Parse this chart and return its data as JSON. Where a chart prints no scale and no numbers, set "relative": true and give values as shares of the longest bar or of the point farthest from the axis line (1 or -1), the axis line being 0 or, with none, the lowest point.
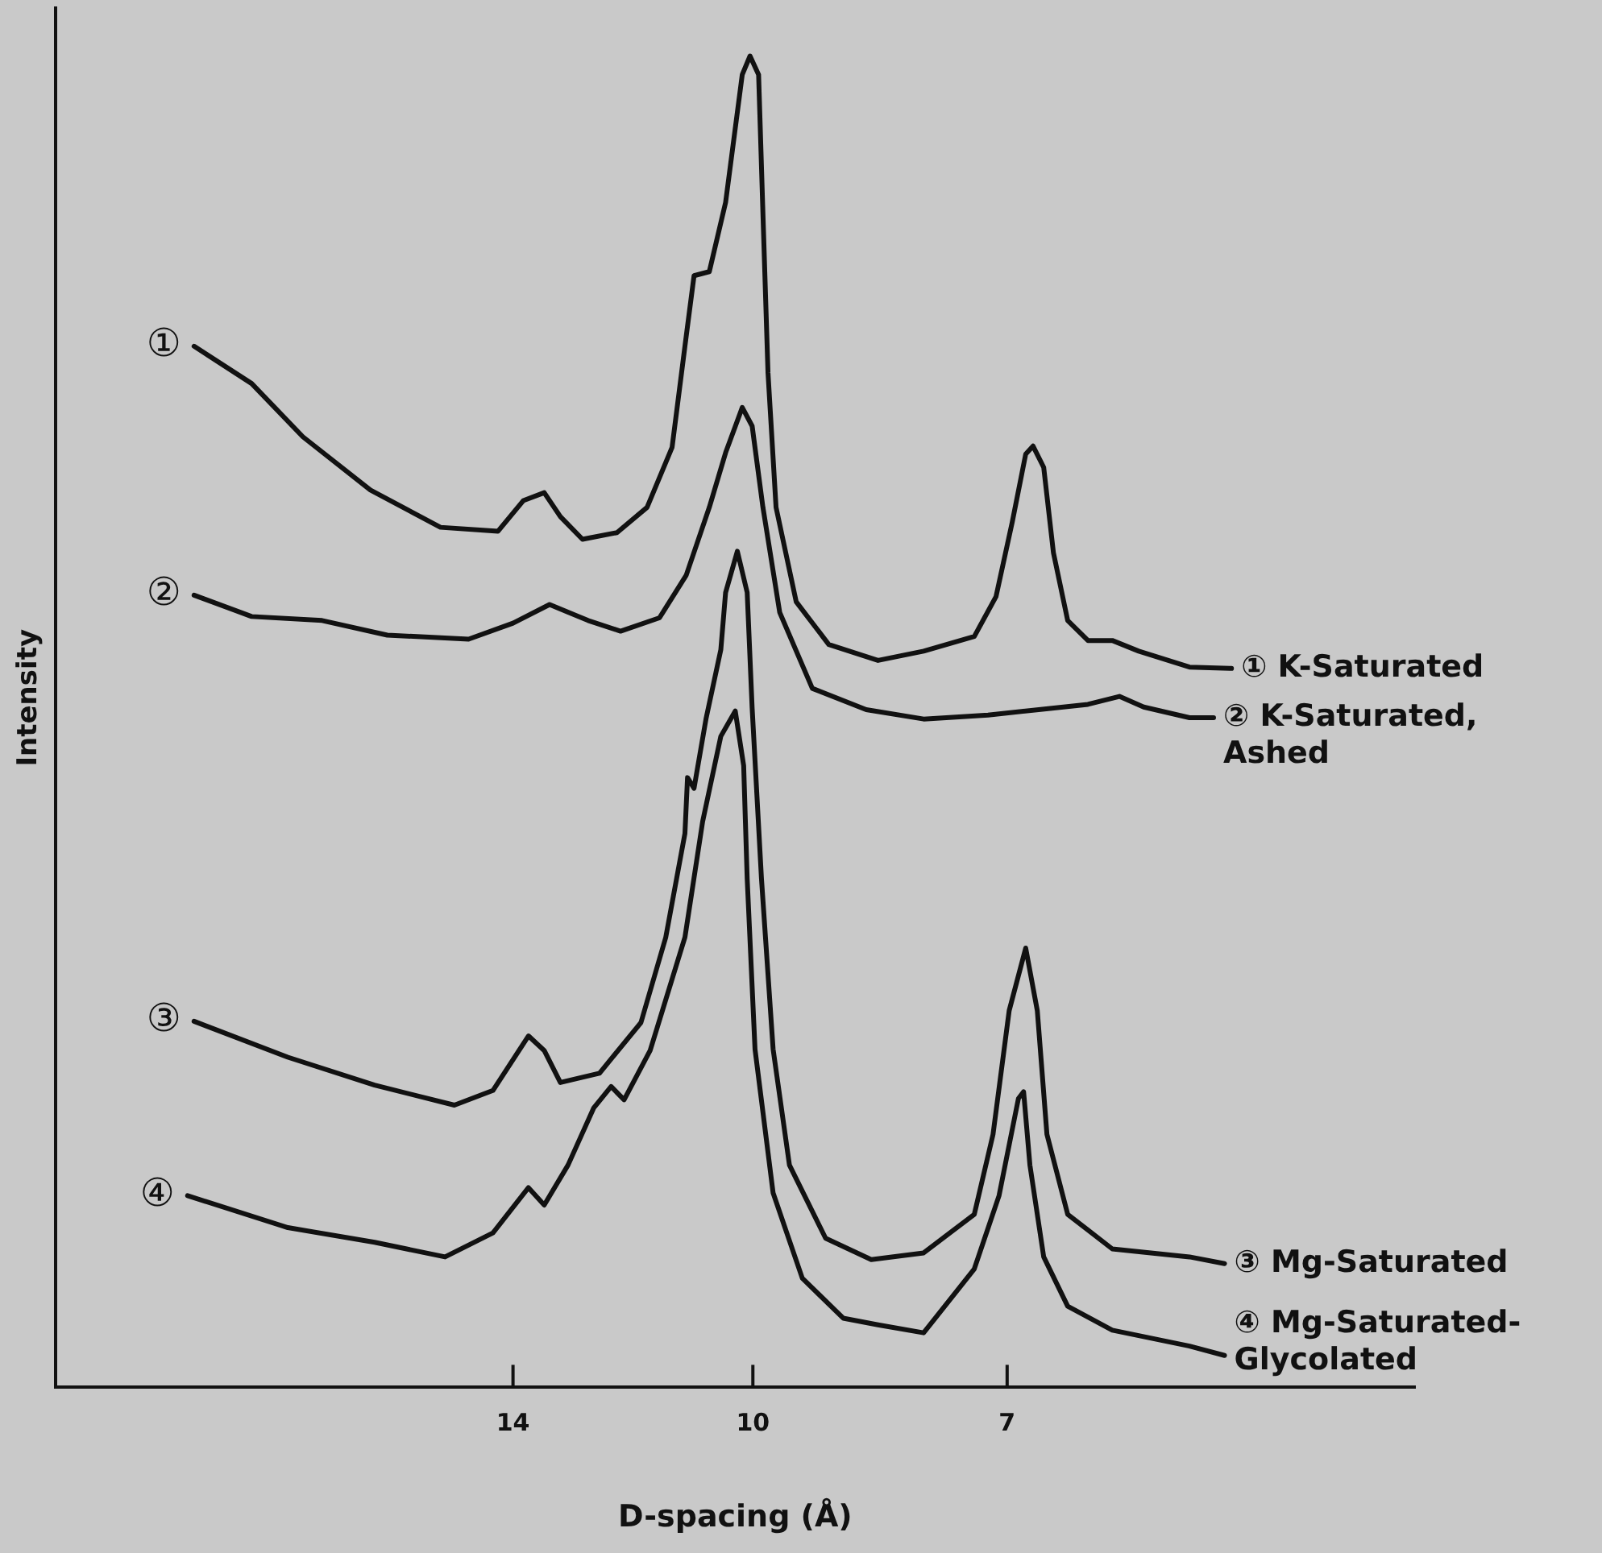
{
  "chart_data": {
    "type": "line",
    "xlabel": "D-spacing (Å)",
    "ylabel": "Intensity",
    "relative": true,
    "log": "x",
    "xlim": [
      26.6,
      3.95
    ],
    "xticks": [
      14,
      10,
      7
    ],
    "marker": "none",
    "line_style": "solid",
    "annotations": [
      "①",
      "②",
      "③",
      "④"
    ],
    "series": [
      {
        "name": "① K-Saturated",
        "color": "#111111",
        "x": [
          21.9,
          20.2,
          18.8,
          17.1,
          15.5,
          14.3,
          13.8,
          13.4,
          13.1,
          12.7,
          12.1,
          11.6,
          11.2,
          11.0,
          10.86,
          10.63,
          10.39,
          10.15,
          10.04,
          9.92,
          9.86,
          9.79,
          9.68,
          9.41,
          8.99,
          8.39,
          7.87,
          7.33,
          7.11,
          6.95,
          6.82,
          6.75,
          6.65,
          6.56,
          6.43,
          6.25,
          6.04,
          5.82,
          5.42,
          5.11
        ],
        "values": [
          0.782,
          0.754,
          0.714,
          0.674,
          0.646,
          0.643,
          0.666,
          0.672,
          0.654,
          0.637,
          0.642,
          0.661,
          0.706,
          0.782,
          0.835,
          0.838,
          0.89,
          0.986,
          1.0,
          0.986,
          0.882,
          0.762,
          0.661,
          0.59,
          0.558,
          0.546,
          0.553,
          0.564,
          0.594,
          0.65,
          0.701,
          0.707,
          0.691,
          0.627,
          0.576,
          0.561,
          0.561,
          0.553,
          0.541,
          0.54
        ]
      },
      {
        "name": "② K-Saturated, Ashed",
        "color": "#111111",
        "x": [
          21.9,
          20.2,
          18.3,
          16.7,
          14.9,
          14.0,
          13.3,
          12.6,
          12.04,
          11.4,
          10.98,
          10.63,
          10.39,
          10.15,
          10.01,
          9.86,
          9.63,
          9.2,
          8.53,
          7.87,
          7.19,
          6.59,
          6.25,
          5.98,
          5.78,
          5.42,
          5.24
        ],
        "values": [
          0.595,
          0.579,
          0.576,
          0.565,
          0.562,
          0.574,
          0.588,
          0.576,
          0.568,
          0.578,
          0.61,
          0.661,
          0.702,
          0.736,
          0.722,
          0.661,
          0.582,
          0.525,
          0.509,
          0.502,
          0.505,
          0.51,
          0.513,
          0.519,
          0.511,
          0.503,
          0.503
        ]
      },
      {
        "name": "③ Mg-Saturated",
        "color": "#111111",
        "x": [
          21.9,
          19.2,
          17.0,
          15.2,
          14.4,
          13.7,
          13.4,
          13.1,
          12.4,
          11.7,
          11.3,
          11.0,
          10.96,
          10.86,
          10.68,
          10.46,
          10.39,
          10.22,
          10.08,
          10.01,
          9.88,
          9.72,
          9.5,
          9.03,
          8.47,
          7.87,
          7.33,
          7.14,
          6.98,
          6.82,
          6.71,
          6.62,
          6.43,
          6.04,
          5.42,
          5.16
        ],
        "values": [
          0.275,
          0.248,
          0.227,
          0.212,
          0.223,
          0.264,
          0.253,
          0.229,
          0.236,
          0.274,
          0.338,
          0.416,
          0.458,
          0.45,
          0.502,
          0.554,
          0.597,
          0.628,
          0.597,
          0.51,
          0.382,
          0.254,
          0.167,
          0.112,
          0.096,
          0.101,
          0.13,
          0.19,
          0.283,
          0.33,
          0.283,
          0.19,
          0.13,
          0.104,
          0.098,
          0.093
        ]
      },
      {
        "name": "④ Mg-Saturated-Glycolated",
        "color": "#111111",
        "x": [
          22.1,
          19.2,
          17.0,
          15.4,
          14.4,
          13.7,
          13.4,
          12.96,
          12.5,
          12.2,
          11.98,
          11.55,
          11.0,
          10.73,
          10.46,
          10.25,
          10.13,
          10.08,
          9.97,
          9.72,
          9.33,
          8.81,
          8.39,
          7.87,
          7.33,
          7.08,
          6.89,
          6.84,
          6.78,
          6.65,
          6.43,
          6.04,
          5.42,
          5.16
        ],
        "values": [
          0.144,
          0.12,
          0.109,
          0.098,
          0.116,
          0.15,
          0.137,
          0.167,
          0.21,
          0.226,
          0.216,
          0.253,
          0.338,
          0.425,
          0.489,
          0.508,
          0.467,
          0.382,
          0.254,
          0.146,
          0.082,
          0.052,
          0.047,
          0.041,
          0.089,
          0.144,
          0.217,
          0.222,
          0.167,
          0.098,
          0.061,
          0.043,
          0.031,
          0.024
        ]
      }
    ]
  }
}
